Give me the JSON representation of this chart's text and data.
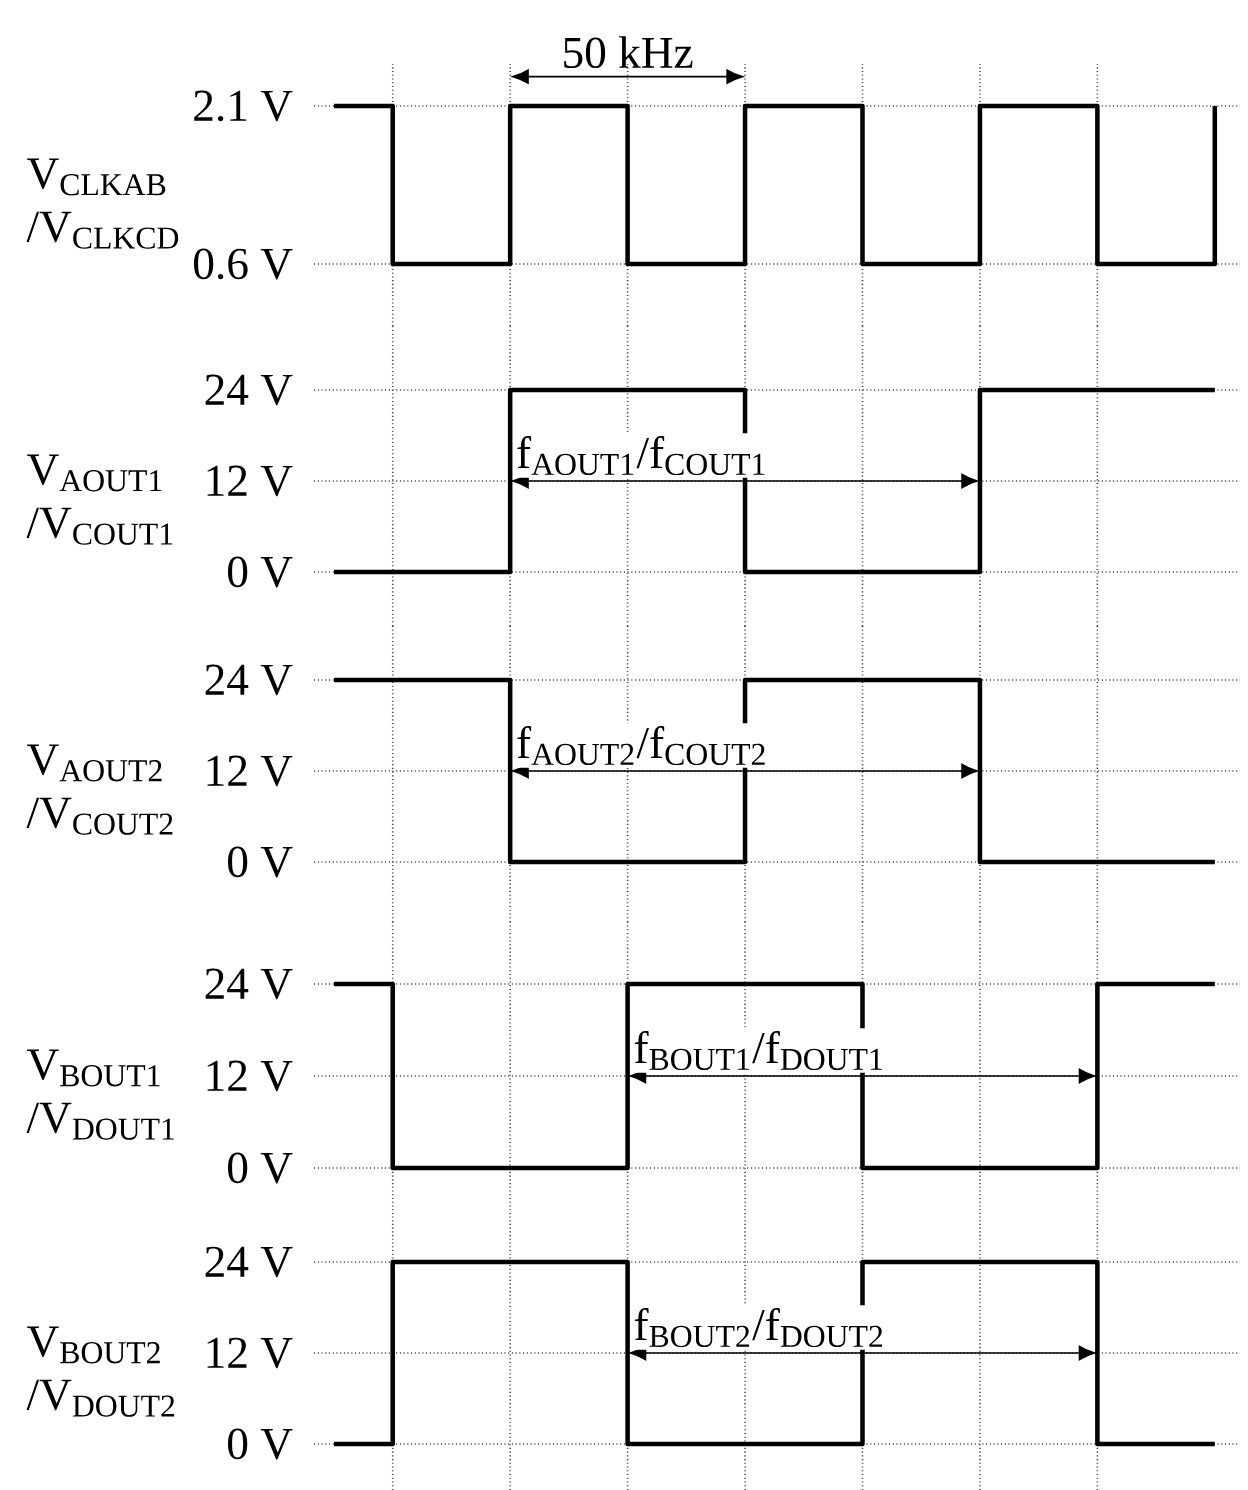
{
  "chart_data": [
    {
      "type": "step",
      "ylabel": "V$_{CLKAB}$ /V$_{CLKCD}$",
      "categories": [
        null,
        null,
        null,
        null,
        null,
        null,
        null,
        null,
        null,
        null,
        null,
        null,
        null,
        null,
        null,
        null
      ],
      "color": "#000000",
      "values": [
        2.1,
        0.6,
        0.6,
        2.1,
        2.1,
        0.6,
        0.6,
        2.1,
        2.1,
        0.6,
        0.6,
        2.1,
        2.1,
        0.6,
        0.6,
        2.1
      ],
      "ylim": [
        0.6,
        2.1
      ],
      "yticks": [
        {
          "value": 0.6,
          "label": "0.6 V"
        },
        {
          "value": 2.1,
          "label": "2.1 V"
        }
      ],
      "grid": true,
      "tick_labels": "y",
      "annotations": [
        "50 kHz"
      ]
    },
    {
      "type": "step",
      "ylabel": "V$_{AOUT1}$ /V$_{COUT1}$",
      "categories": [
        null,
        null,
        null,
        null,
        null,
        null,
        null,
        null,
        null,
        null,
        null,
        null,
        null,
        null,
        null,
        null
      ],
      "color": "#000000",
      "values": [
        0,
        0,
        0,
        24,
        24,
        24,
        24,
        0,
        0,
        0,
        0,
        24,
        24,
        24,
        24,
        24
      ],
      "ylim": [
        0,
        24
      ],
      "yticks": [
        {
          "value": 0,
          "label": "0 V"
        },
        {
          "value": 12,
          "label": "12 V"
        },
        {
          "value": 24,
          "label": "24 V"
        }
      ],
      "grid": true,
      "tick_labels": "y",
      "annotations": [
        "f$_{AOUT1}$/f$_{COUT1}$"
      ]
    },
    {
      "type": "step",
      "ylabel": "V$_{AOUT2}$ /V$_{COUT2}$",
      "categories": [
        null,
        null,
        null,
        null,
        null,
        null,
        null,
        null,
        null,
        null,
        null,
        null,
        null,
        null,
        null,
        null
      ],
      "color": "#000000",
      "values": [
        24,
        24,
        24,
        0,
        0,
        0,
        0,
        24,
        24,
        24,
        24,
        0,
        0,
        0,
        0,
        0
      ],
      "ylim": [
        0,
        24
      ],
      "yticks": [
        {
          "value": 0,
          "label": "0 V"
        },
        {
          "value": 12,
          "label": "12 V"
        },
        {
          "value": 24,
          "label": "24 V"
        }
      ],
      "grid": true,
      "tick_labels": "y",
      "annotations": [
        "f$_{AOUT2}$/f$_{COUT2}$"
      ]
    },
    {
      "type": "step",
      "ylabel": "V$_{BOUT1}$ /V$_{DOUT1}$",
      "categories": [
        null,
        null,
        null,
        null,
        null,
        null,
        null,
        null,
        null,
        null,
        null,
        null,
        null,
        null,
        null,
        null
      ],
      "color": "#000000",
      "values": [
        24,
        0,
        0,
        0,
        0,
        24,
        24,
        24,
        24,
        0,
        0,
        0,
        0,
        24,
        24,
        24
      ],
      "ylim": [
        0,
        24
      ],
      "yticks": [
        {
          "value": 0,
          "label": "0 V"
        },
        {
          "value": 12,
          "label": "12 V"
        },
        {
          "value": 24,
          "label": "24 V"
        }
      ],
      "grid": true,
      "tick_labels": "y",
      "annotations": [
        "f$_{BOUT1}$/f$_{DOUT1}$"
      ]
    },
    {
      "type": "step",
      "ylabel": "V$_{BOUT2}$ /V$_{DOUT2}$",
      "categories": [
        null,
        null,
        null,
        null,
        null,
        null,
        null,
        null,
        null,
        null,
        null,
        null,
        null,
        null,
        null,
        null
      ],
      "color": "#000000",
      "values": [
        0,
        24,
        24,
        24,
        24,
        0,
        0,
        0,
        0,
        24,
        24,
        24,
        24,
        0,
        0,
        0
      ],
      "ylim": [
        0,
        24
      ],
      "yticks": [
        {
          "value": 0,
          "label": "0 V"
        },
        {
          "value": 12,
          "label": "12 V"
        },
        {
          "value": 24,
          "label": "24 V"
        }
      ],
      "grid": true,
      "tick_labels": "y",
      "annotations": [
        "f$_{BOUT2}$/f$_{DOUT2}$"
      ]
    }
  ]
}
